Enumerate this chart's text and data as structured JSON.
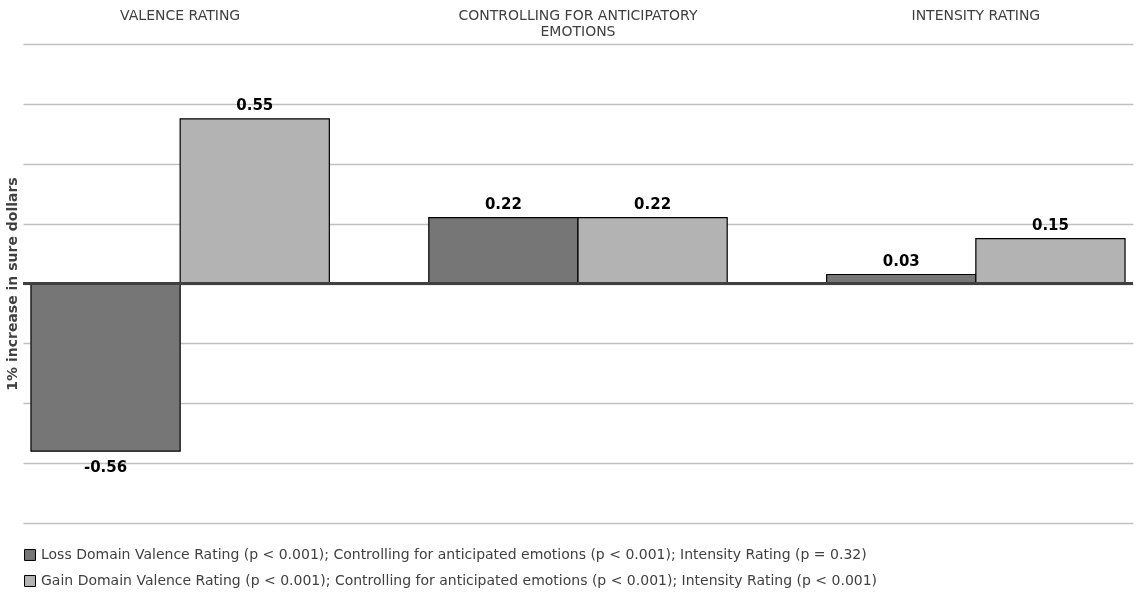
{
  "chart_data": {
    "type": "bar",
    "ylabel": "1% increase in sure dollars",
    "categories": [
      "VALENCE RATING",
      "CONTROLLING FOR ANTICIPATORY EMOTIONS",
      "INTENSITY RATING"
    ],
    "series": [
      {
        "name": "Loss Domain Valence Rating (p < 0.001); Controlling for anticipated emotions (p < 0.001); Intensity Rating (p = 0.32)",
        "color": "#767676",
        "values": [
          -0.56,
          0.22,
          0.03
        ]
      },
      {
        "name": "Gain Domain Valence Rating (p < 0.001); Controlling for anticipated emotions (p < 0.001); Intensity Rating (p < 0.001)",
        "color": "#b3b3b3",
        "values": [
          0.55,
          0.22,
          0.15
        ]
      }
    ],
    "ylim": [
      -0.8,
      0.8
    ],
    "yticks": [
      {
        "value": -0.8,
        "label": null
      },
      {
        "value": -0.6,
        "label": null
      },
      {
        "value": -0.4,
        "label": null
      },
      {
        "value": -0.2,
        "label": null
      },
      {
        "value": 0,
        "label": null
      },
      {
        "value": 0.2,
        "label": null
      },
      {
        "value": 0.4,
        "label": null
      },
      {
        "value": 0.6,
        "label": null
      },
      {
        "value": 0.8,
        "label": null
      }
    ],
    "ref_lines": [
      {
        "axis": "y",
        "value": 0,
        "color": "#404040"
      }
    ],
    "data_labels": true,
    "grid": "y",
    "legend": "bottom",
    "tick_labels": "x"
  }
}
